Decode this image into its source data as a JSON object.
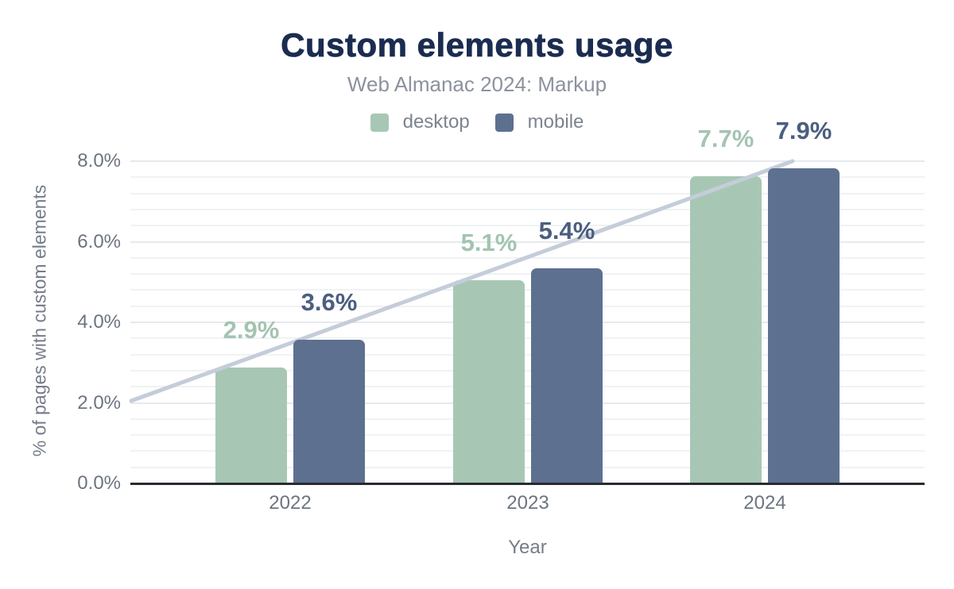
{
  "chart_data": {
    "type": "bar",
    "title": "Custom elements usage",
    "subtitle": "Web Almanac 2024: Markup",
    "xlabel": "Year",
    "ylabel": "% of pages with custom elements",
    "categories": [
      "2022",
      "2023",
      "2024"
    ],
    "series": [
      {
        "name": "desktop",
        "values": [
          2.9,
          5.1,
          7.7
        ],
        "labels": [
          "2.9%",
          "5.1%",
          "7.7%"
        ],
        "color": "#a7c7b4",
        "label_color": "#a3c4b1"
      },
      {
        "name": "mobile",
        "values": [
          3.6,
          5.4,
          7.9
        ],
        "labels": [
          "3.6%",
          "5.4%",
          "7.9%"
        ],
        "color": "#5e7090",
        "label_color": "#4b5e80"
      }
    ],
    "y_ticks": [
      {
        "label": "8.0%",
        "value": 8.0
      },
      {
        "label": "6.0%",
        "value": 6.0
      },
      {
        "label": "4.0%",
        "value": 4.0
      },
      {
        "label": "2.0%",
        "value": 2.0
      },
      {
        "label": "0.0%",
        "value": 0.0
      }
    ],
    "ylim": [
      0,
      8.1
    ],
    "grid": {
      "major_step_percent": 2.0,
      "minor_step_percent": 0.4,
      "visible": true
    },
    "legend_position": "top",
    "trend_line": {
      "start_percent": 2.08,
      "end_percent": 8.0,
      "color": "#c4cdd9",
      "description": "upward linear trend line, drawn above desktop bars and behind mobile bars"
    },
    "colors": {
      "title": "#1b2c50",
      "subtitle": "#8b929e",
      "tick": "#6c7480",
      "axis-title": "#757d89",
      "legend-text": "#7c8490",
      "baseline": "#282b30",
      "grid-major": "#e6e9ed",
      "grid-minor": "#f0f2f4"
    }
  }
}
